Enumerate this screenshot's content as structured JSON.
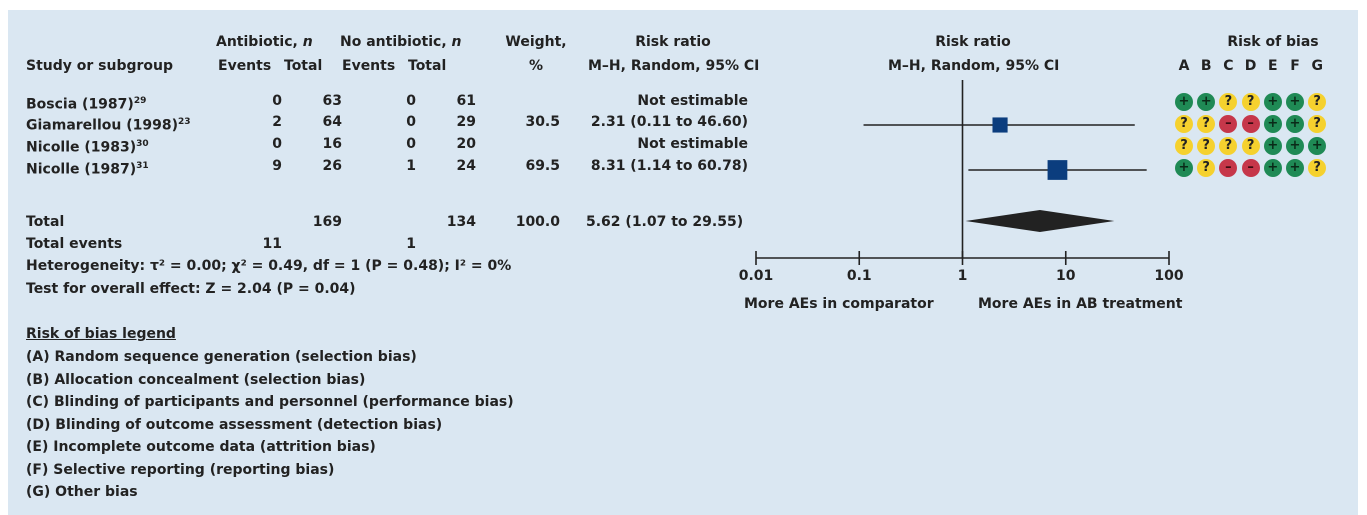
{
  "header": {
    "study": "Study or subgroup",
    "antibiotic": "Antibiotic,",
    "antibiotic_n": "n",
    "no_antibiotic": "No antibiotic,",
    "no_antibiotic_n": "n",
    "events": "Events",
    "total": "Total",
    "events2": "Events",
    "total2": "Total",
    "weight": "Weight,",
    "weight_unit": "%",
    "rr": "Risk ratio",
    "rr_method": "M–H, Random, 95% CI",
    "plot_title": "Risk ratio",
    "plot_method": "M–H, Random, 95% CI",
    "rob_title": "Risk of bias",
    "rob_cols": [
      "A",
      "B",
      "C",
      "D",
      "E",
      "F",
      "G"
    ]
  },
  "studies": [
    {
      "name": "Boscia (1987)",
      "ref": "29",
      "ab_events": "0",
      "ab_total": "63",
      "no_events": "0",
      "no_total": "61",
      "weight": "",
      "ci": "Not estimable",
      "rob": [
        "low",
        "low",
        "unc",
        "unc",
        "low",
        "low",
        "unc"
      ]
    },
    {
      "name": "Giamarellou (1998)",
      "ref": "23",
      "ab_events": "2",
      "ab_total": "64",
      "no_events": "0",
      "no_total": "29",
      "weight": "30.5",
      "ci": "2.31 (0.11 to 46.60)",
      "rob": [
        "unc",
        "unc",
        "high",
        "high",
        "low",
        "low",
        "unc"
      ]
    },
    {
      "name": "Nicolle (1983)",
      "ref": "30",
      "ab_events": "0",
      "ab_total": "16",
      "no_events": "0",
      "no_total": "20",
      "weight": "",
      "ci": "Not estimable",
      "rob": [
        "unc",
        "unc",
        "unc",
        "unc",
        "low",
        "low",
        "low"
      ]
    },
    {
      "name": "Nicolle (1987)",
      "ref": "31",
      "ab_events": "9",
      "ab_total": "26",
      "no_events": "1",
      "no_total": "24",
      "weight": "69.5",
      "ci": "8.31 (1.14 to 60.78)",
      "rob": [
        "low",
        "unc",
        "high",
        "high",
        "low",
        "low",
        "unc"
      ]
    }
  ],
  "rob_symbols": {
    "low": "+",
    "unc": "?",
    "high": "–"
  },
  "total": {
    "label": "Total",
    "ab_total": "169",
    "no_total": "134",
    "weight": "100.0",
    "ci": "5.62 (1.07 to 29.55)"
  },
  "total_events": {
    "label": "Total events",
    "ab": "11",
    "no": "1"
  },
  "heterogeneity": "Heterogeneity: τ² = 0.00;  χ² = 0.49, df = 1 (P = 0.48); I² = 0%",
  "overall_effect": "Test for overall effect: Z = 2.04 (P = 0.04)",
  "rob_legend": {
    "title": "Risk of bias legend",
    "items": [
      "(A) Random sequence generation (selection bias)",
      "(B) Allocation concealment (selection bias)",
      "(C) Blinding of participants and personnel (performance bias)",
      "(D) Blinding of outcome assessment (detection bias)",
      "(E) Incomplete outcome data (attrition bias)",
      "(F) Selective reporting (reporting bias)",
      "(G) Other bias"
    ]
  },
  "colors": {
    "marker": "#0b3d7e",
    "diamond": "#222222",
    "line": "#222222",
    "low": "#1f8a55",
    "unclear": "#f5d12e",
    "high": "#c6374a"
  },
  "chart_data": {
    "type": "scatter",
    "subtype": "forest",
    "scale": "log",
    "xlim": [
      0.01,
      100
    ],
    "ticks": [
      "0.01",
      "0.1",
      "1",
      "10",
      "100"
    ],
    "tick_values": [
      0.01,
      0.1,
      1,
      10,
      100
    ],
    "xlabel_left": "More AEs in comparator",
    "xlabel_right": "More AEs in AB treatment",
    "series": [
      {
        "name": "Giamarellou (1998)",
        "rr": 2.31,
        "lo": 0.11,
        "hi": 46.6,
        "weight": 30.5
      },
      {
        "name": "Nicolle (1987)",
        "rr": 8.31,
        "lo": 1.14,
        "hi": 60.78,
        "weight": 69.5
      }
    ],
    "pooled": {
      "rr": 5.62,
      "lo": 1.07,
      "hi": 29.55
    }
  }
}
